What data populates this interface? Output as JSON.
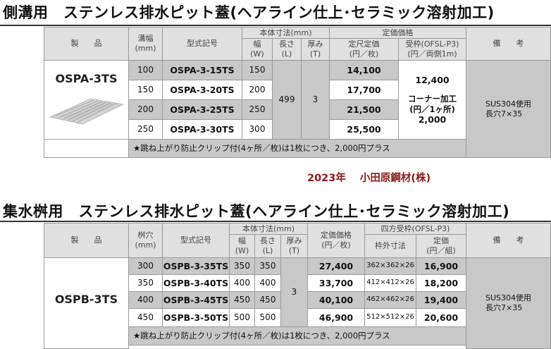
{
  "section1": {
    "title": "側溝用　ステンレス排水ピット蓋(ヘアライン仕上･セラミック溶射加工)",
    "headers": {
      "product": "製　　品",
      "width": "溝幅\n(mm)",
      "model": "型式記号",
      "dims": "本体寸法(mm)",
      "dim_w": "幅\n(W)",
      "dim_l": "長さ\n(L)",
      "dim_t": "厚み\n(T)",
      "price": "定価価格",
      "unit_price": "定尺定価\n(円／枚)",
      "frame": "受枠(OFSL-P3)\n(円／両側1m)",
      "remarks": "備　　考"
    },
    "product_name": "OSPA-3TS",
    "rows": [
      {
        "width": "100",
        "model": "OSPA-3-15TS",
        "w": "150",
        "price": "14,100"
      },
      {
        "width": "150",
        "model": "OSPA-3-20TS",
        "w": "200",
        "price": "17,700"
      },
      {
        "width": "200",
        "model": "OSPA-3-25TS",
        "w": "250",
        "price": "21,500"
      },
      {
        "width": "250",
        "model": "OSPA-3-30TS",
        "w": "300",
        "price": "25,500"
      }
    ],
    "length": "499",
    "thickness": "3",
    "frame_price": "12,400",
    "corner_label": "コーナー加工\n(円／1ヶ所)",
    "corner_price": "2,000",
    "remarks": "SUS304使用\n長穴7×35",
    "note": "★跳ね上がり防止クリップ付(4ヶ所／枚)は1枚につき、2,000円プラス"
  },
  "company": {
    "year": "2023年",
    "name": "小田原鋼材(株)"
  },
  "section2": {
    "title": "集水桝用　ステンレス排水ピット蓋(ヘアライン仕上･セラミック溶射加工)",
    "headers": {
      "product": "製　　品",
      "hole": "桝穴\n(mm)",
      "model": "型式記号",
      "dims": "本体寸法(mm)",
      "dim_w": "幅\n(W)",
      "dim_l": "長さ\n(L)",
      "dim_t": "厚み\n(T)",
      "price": "定価価格\n(円／枚)",
      "frame_group": "四方受枠(OFSL-P3)",
      "frame_size": "枠外寸法",
      "frame_price": "定価\n(円／組)",
      "remarks": "備　　考"
    },
    "product_name": "OSPB-3TS",
    "rows": [
      {
        "hole": "300",
        "model": "OSPB-3-35TS",
        "w": "350",
        "l": "350",
        "price": "27,400",
        "frame_size": "362×362×26",
        "frame_price": "16,900"
      },
      {
        "hole": "350",
        "model": "OSPB-3-40TS",
        "w": "400",
        "l": "400",
        "price": "33,700",
        "frame_size": "412×412×26",
        "frame_price": "18,200"
      },
      {
        "hole": "400",
        "model": "OSPB-3-45TS",
        "w": "450",
        "l": "450",
        "price": "40,100",
        "frame_size": "462×462×26",
        "frame_price": "19,400"
      },
      {
        "hole": "450",
        "model": "OSPB-3-50TS",
        "w": "500",
        "l": "500",
        "price": "46,900",
        "frame_size": "512×512×26",
        "frame_price": "20,600"
      }
    ],
    "thickness": "3",
    "remarks": "SUS304使用\n長穴7×35",
    "note": "★跳ね上がり防止クリップ付(4ヶ所／枚)は1枚につき、2,000円プラス"
  }
}
